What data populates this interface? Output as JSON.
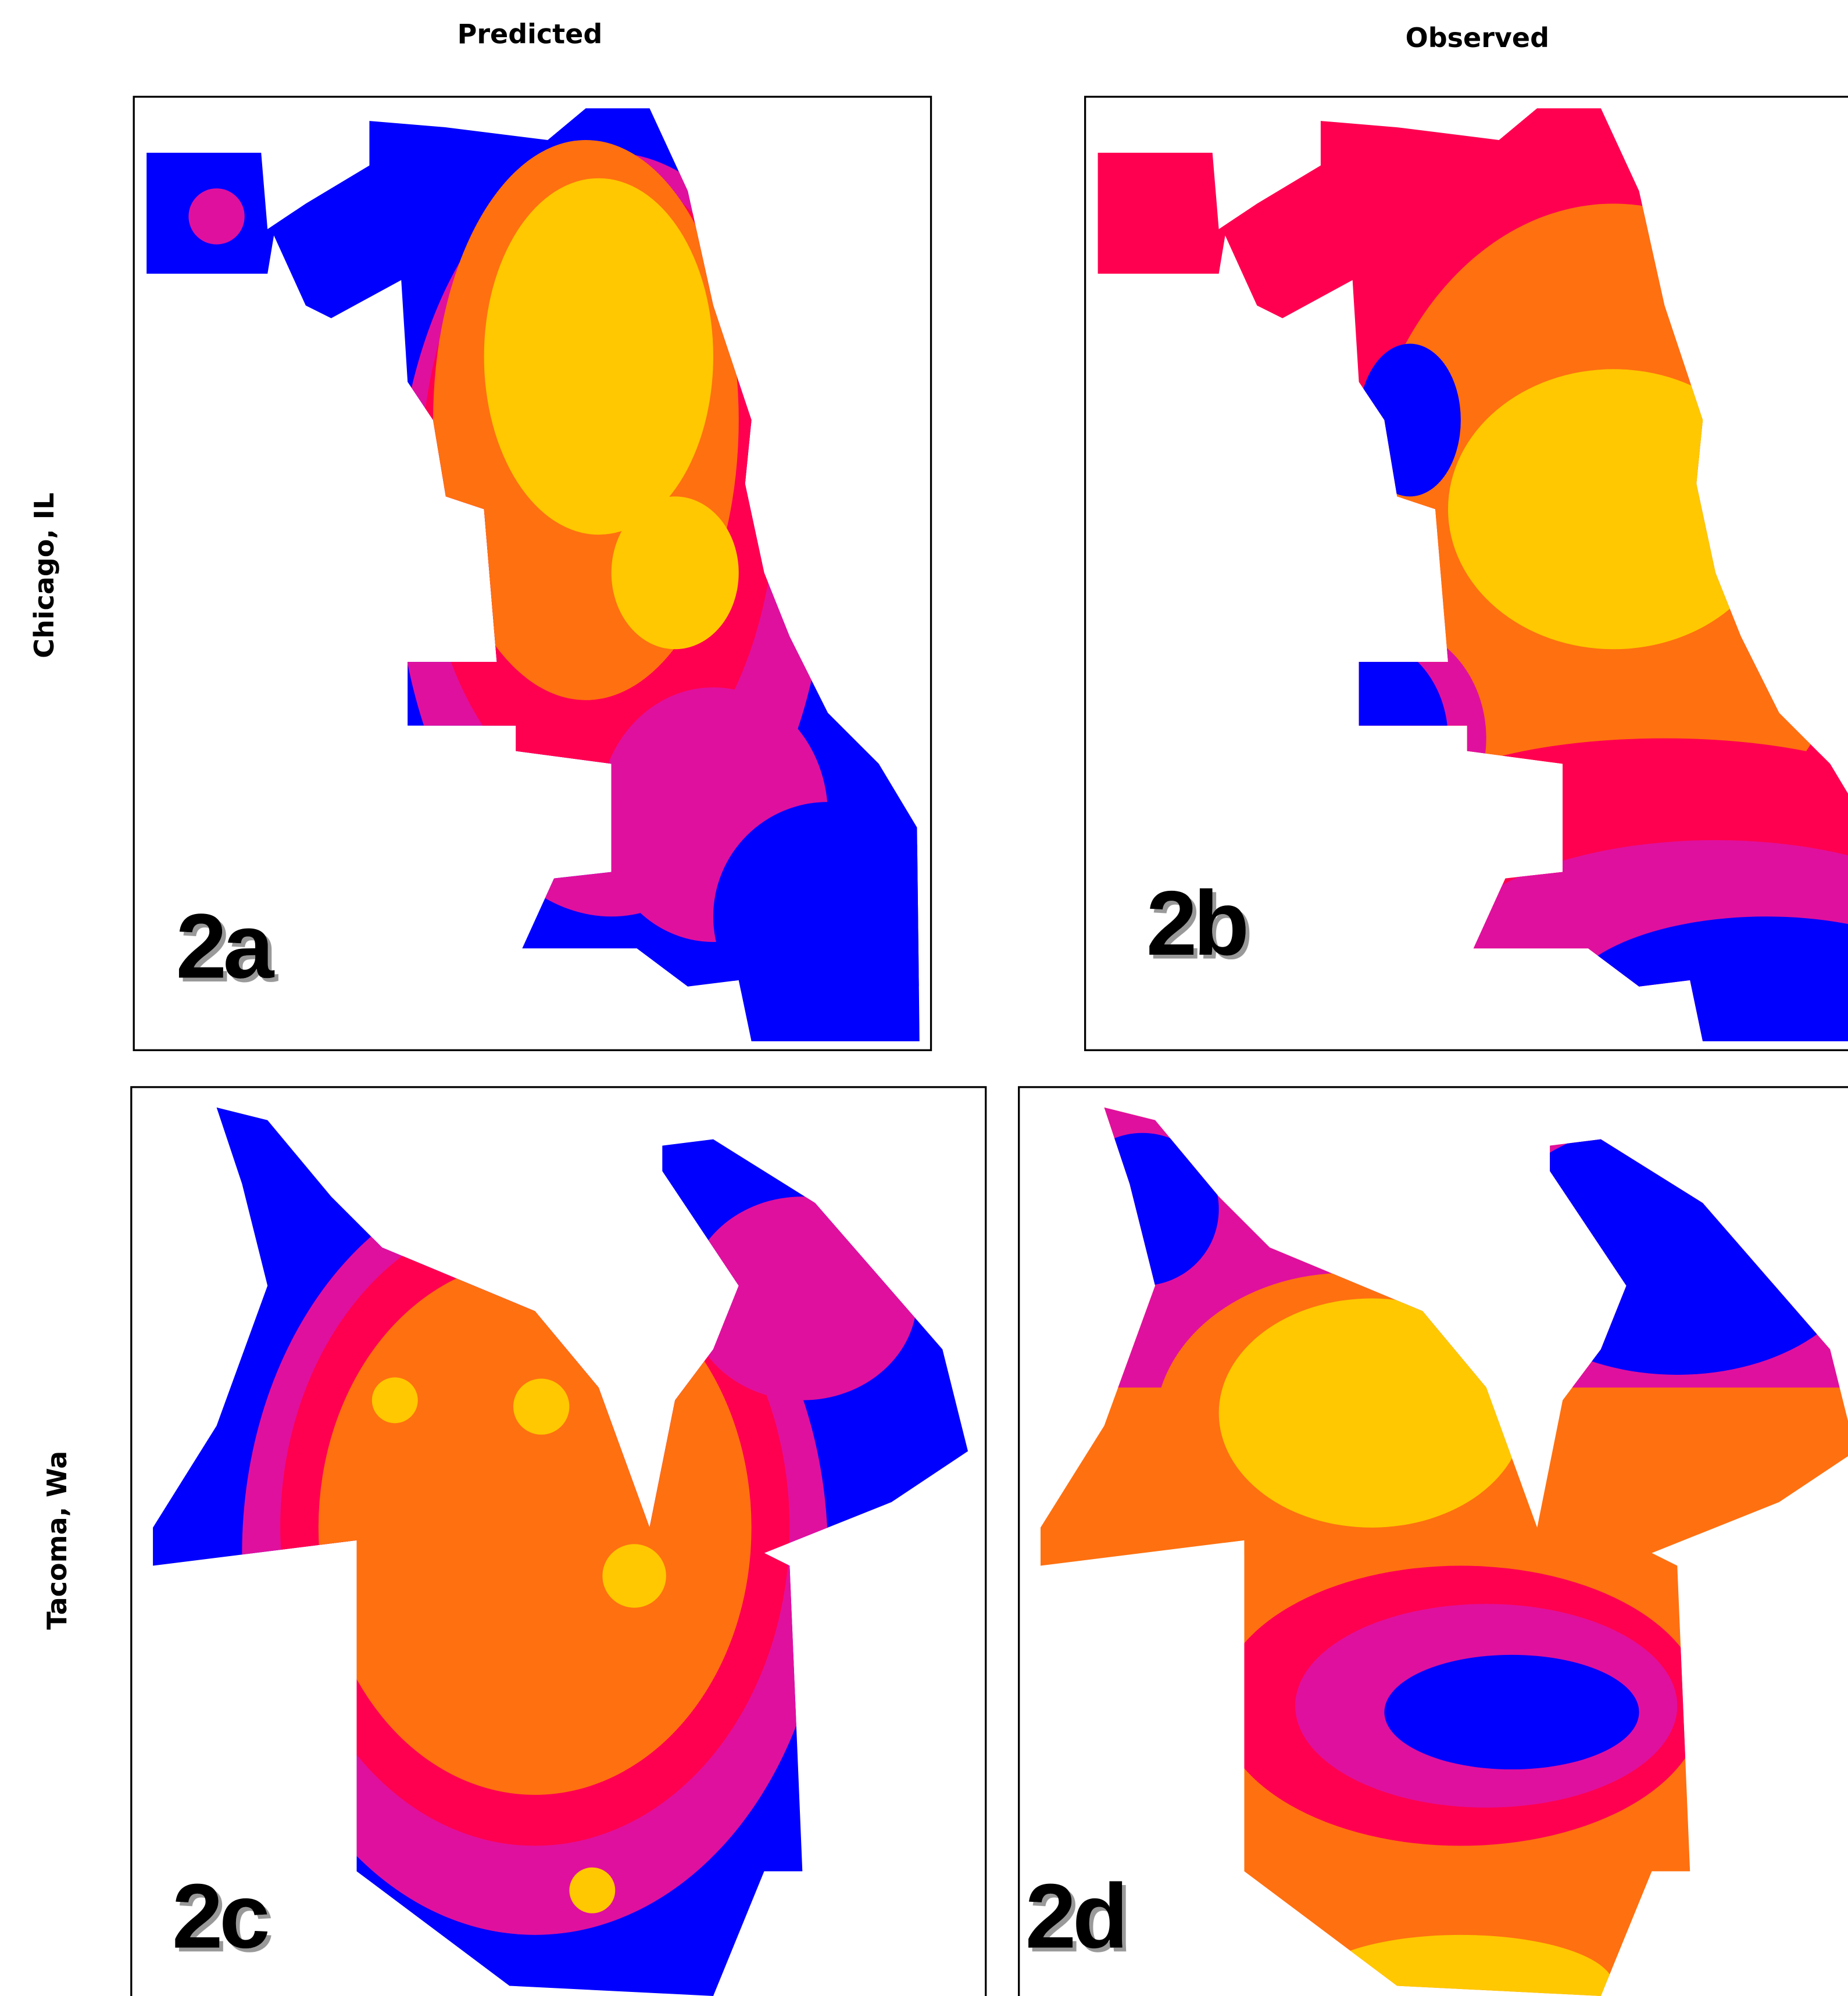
{
  "columns": [
    "Predicted",
    "Observed"
  ],
  "rows": [
    "Chicago, IL",
    "Tacoma, Wa"
  ],
  "panels": [
    "2a",
    "2b",
    "2c",
    "2d"
  ]
}
